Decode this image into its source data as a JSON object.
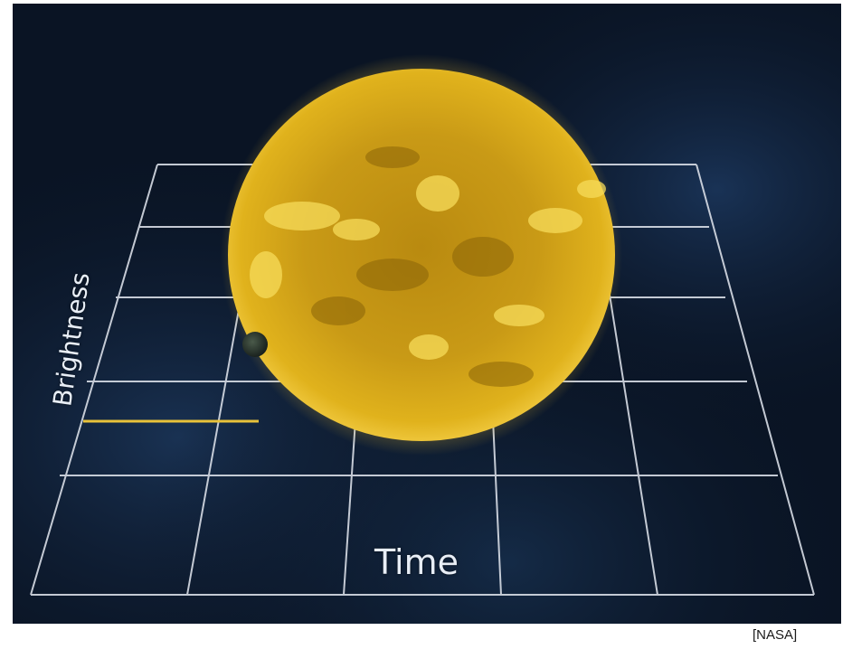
{
  "diagram": {
    "x_axis_label": "Time",
    "y_axis_label": "Brightness",
    "credit": "[NASA]",
    "colors": {
      "background": "#0a1424",
      "grid": "#d8dde6",
      "sun": "#e6b21a",
      "light_curve": "#e8c23a"
    },
    "objects": [
      "sun",
      "planet",
      "light-curve",
      "perspective-grid"
    ]
  }
}
